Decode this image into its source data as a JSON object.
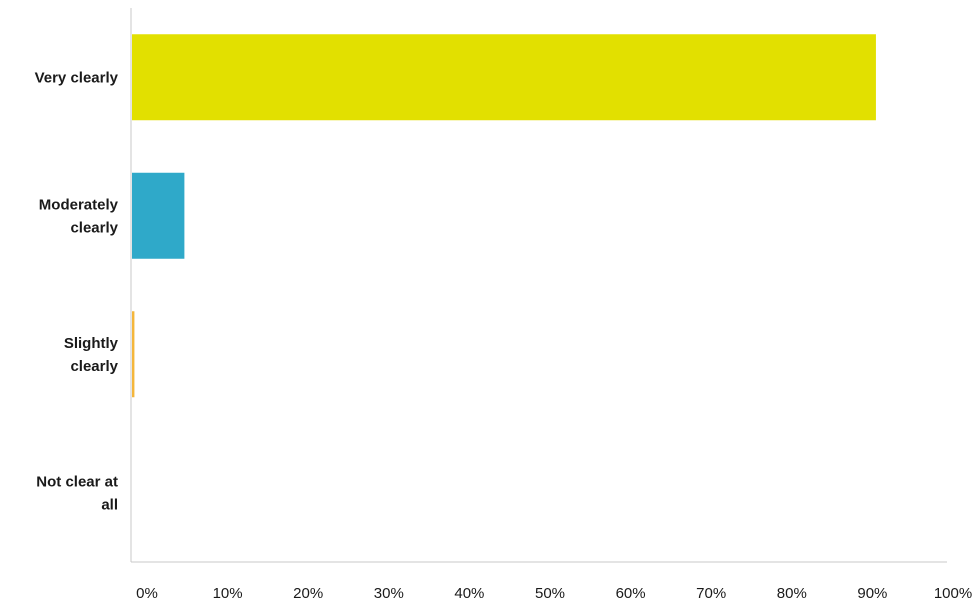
{
  "chart_data": {
    "type": "bar",
    "orientation": "horizontal",
    "title": "",
    "xlabel": "",
    "ylabel": "",
    "categories": [
      "Very clearly",
      "Moderately clearly",
      "Slightly clearly",
      "Not clear at all"
    ],
    "category_lines": [
      [
        "Very clearly"
      ],
      [
        "Moderately",
        "clearly"
      ],
      [
        "Slightly",
        "clearly"
      ],
      [
        "Not clear at",
        "all"
      ]
    ],
    "values": [
      92.3,
      6.5,
      0.3,
      0
    ],
    "value_unit": "%",
    "bar_colors": [
      "#e2e000",
      "#2fa9c9",
      "#f4b63b",
      "#cccccc"
    ],
    "xlim": [
      0,
      100
    ],
    "xticks": [
      "0%",
      "10%",
      "20%",
      "30%",
      "40%",
      "50%",
      "60%",
      "70%",
      "80%",
      "90%",
      "100%"
    ],
    "grid": false,
    "legend": "none"
  }
}
